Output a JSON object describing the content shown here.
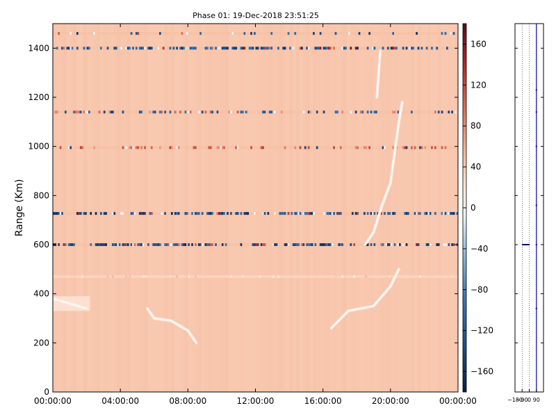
{
  "chart_data": [
    {
      "type": "heatmap",
      "title": "Phase 01: 19-Dec-2018 23:51:25",
      "ylabel": "Range (Km)",
      "xlabel": "",
      "x_ticks": [
        "00:00:00",
        "04:00:00",
        "08:00:00",
        "12:00:00",
        "16:00:00",
        "20:00:00",
        "00:00:00"
      ],
      "y_ticks": [
        0,
        200,
        400,
        600,
        800,
        1000,
        1200,
        1400
      ],
      "xlim_hours": [
        0,
        24
      ],
      "ylim": [
        0,
        1500
      ],
      "background_value": 40,
      "colorbar": {
        "ticks": [
          160,
          120,
          80,
          40,
          0,
          -40,
          -80,
          -120,
          -160
        ],
        "range": [
          -180,
          180
        ],
        "colormap": "RdBu_r"
      },
      "interference_rows": [
        {
          "range_km": 1460,
          "style": "blue-sparse"
        },
        {
          "range_km": 1400,
          "style": "blue-dense"
        },
        {
          "range_km": 1140,
          "style": "mixed"
        },
        {
          "range_km": 995,
          "style": "red-sparse"
        },
        {
          "range_km": 727,
          "style": "blue-dense"
        },
        {
          "range_km": 600,
          "style": "blue-dense"
        },
        {
          "range_km": 470,
          "style": "faint"
        }
      ],
      "echo_tracks": [
        {
          "name": "early-track",
          "points": [
            [
              0.0,
              380
            ],
            [
              1.0,
              360
            ],
            [
              2.0,
              340
            ]
          ]
        },
        {
          "name": "dawn-track",
          "points": [
            [
              5.6,
              340
            ],
            [
              6.0,
              300
            ],
            [
              7.0,
              290
            ],
            [
              8.0,
              250
            ],
            [
              8.5,
              200
            ]
          ]
        },
        {
          "name": "evening-track",
          "points": [
            [
              16.5,
              260
            ],
            [
              17.5,
              330
            ],
            [
              19.0,
              350
            ],
            [
              20.0,
              430
            ],
            [
              20.5,
              500
            ]
          ]
        },
        {
          "name": "evening-upper",
          "points": [
            [
              18.5,
              600
            ],
            [
              19.0,
              650
            ],
            [
              19.5,
              760
            ],
            [
              20.0,
              850
            ],
            [
              20.3,
              1000
            ],
            [
              20.5,
              1100
            ],
            [
              20.7,
              1180
            ]
          ]
        },
        {
          "name": "midnight-upper",
          "points": [
            [
              19.2,
              1200
            ],
            [
              19.3,
              1300
            ],
            [
              19.4,
              1390
            ]
          ]
        }
      ]
    },
    {
      "type": "line",
      "series": [
        {
          "points": [
            [
              -90,
              600
            ],
            [
              5,
              600
            ]
          ]
        },
        {
          "points": [
            [
              90,
              0
            ],
            [
              90,
              1500
            ]
          ]
        }
      ],
      "x_ticks": [
        "-180",
        "-90",
        "0",
        "90"
      ],
      "xlim": [
        -180,
        180
      ],
      "ylim": [
        0,
        1500
      ],
      "grid": "vertical-dotted"
    }
  ],
  "colors": {
    "background": "#f8c7ad",
    "axis": "#000000",
    "profile_line": "#0000aa"
  }
}
